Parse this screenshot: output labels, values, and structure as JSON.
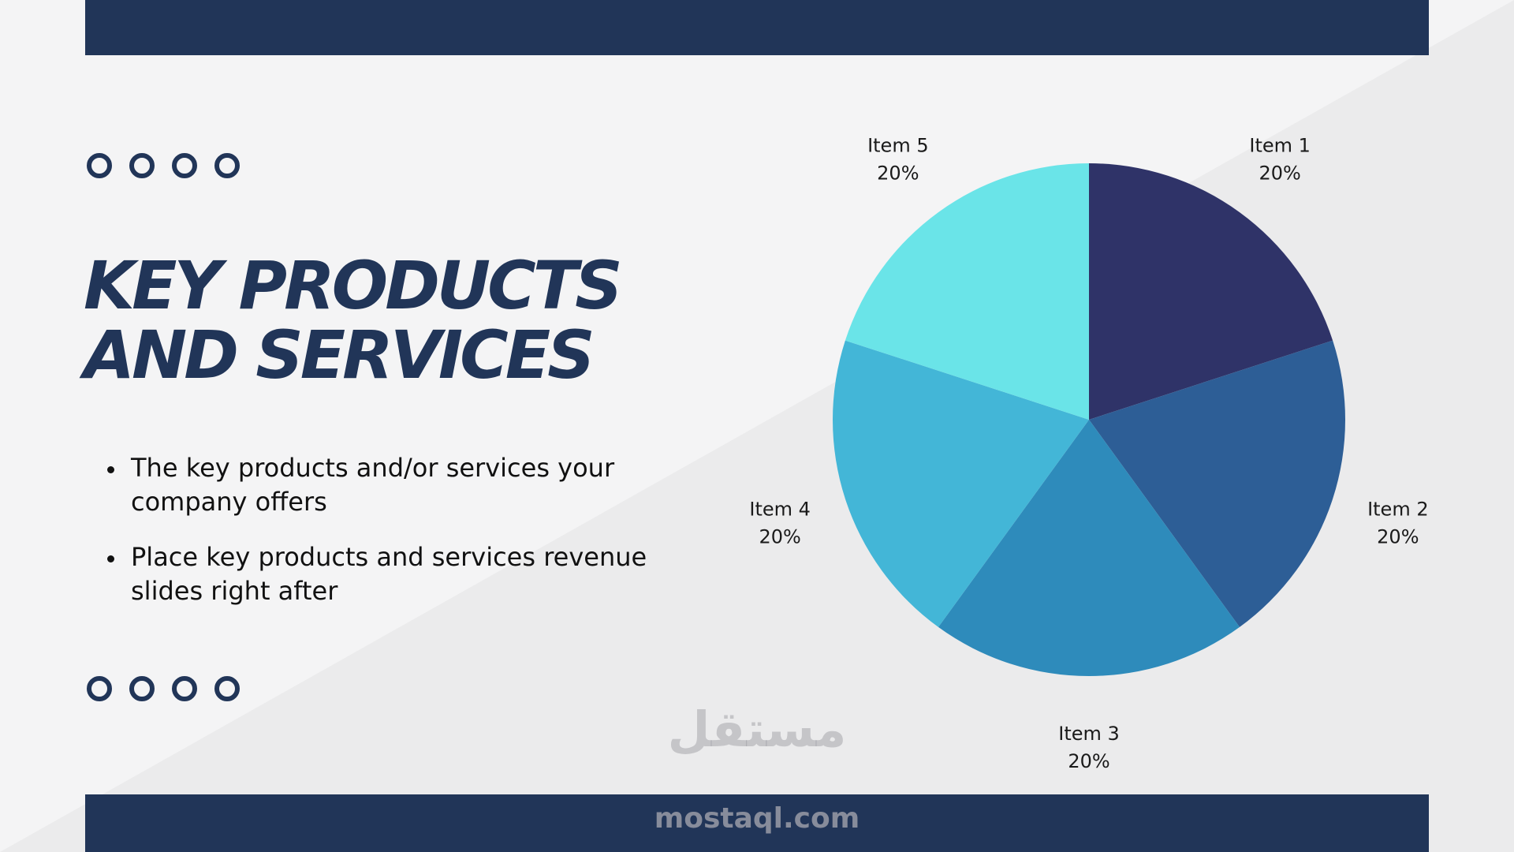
{
  "slide": {
    "title_line1": "KEY PRODUCTS",
    "title_line2": "AND SERVICES",
    "bullets": [
      "The key products and/or services your company offers",
      "Place key products and services revenue slides right after"
    ]
  },
  "colors": {
    "navy": "#213558",
    "background_light": "#f4f4f5",
    "background_shade": "#ebebec"
  },
  "decor": {
    "top_dots_icon": "ring-icon",
    "bottom_dots_icon": "ring-icon",
    "dot_count": 4
  },
  "watermark": {
    "logo_text": "مستقل",
    "site": "mostaql.com"
  },
  "chart_data": {
    "type": "pie",
    "categories": [
      "Item 1",
      "Item 2",
      "Item 3",
      "Item 4",
      "Item 5"
    ],
    "values": [
      20,
      20,
      20,
      20,
      20
    ],
    "value_labels": [
      "20%",
      "20%",
      "20%",
      "20%",
      "20%"
    ],
    "colors": [
      "#2f3368",
      "#2d5e96",
      "#2e8bbb",
      "#43b6d7",
      "#6ae4e8"
    ],
    "start": "12 o'clock, clockwise"
  }
}
